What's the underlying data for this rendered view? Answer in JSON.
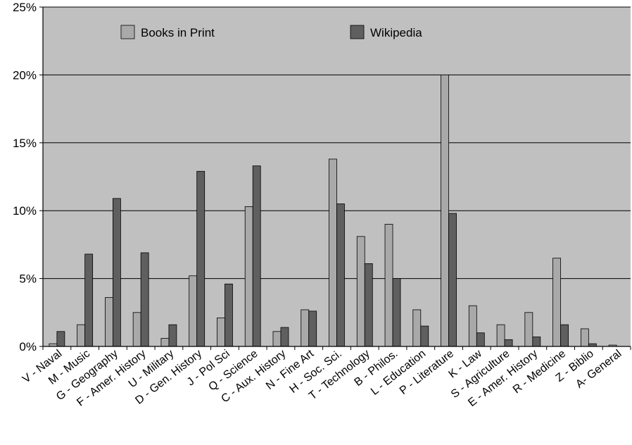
{
  "chart_data": {
    "type": "bar",
    "categories": [
      "V - Naval",
      "M - Music",
      "G - Geography",
      "F - Amer. History",
      "U - Military",
      "D - Gen. History",
      "J - Pol Sci",
      "Q - Science",
      "C - Aux. History",
      "N - Fine Art",
      "H - Soc. Sci.",
      "T - Technology",
      "B - Philos.",
      "L - Education",
      "P - Literature",
      "K - Law",
      "S - Agriculture",
      "E - Amer. History",
      "R - Medicine",
      "Z - Biblio",
      "A- General"
    ],
    "series": [
      {
        "name": "Books in Print",
        "color": "#a9a9a9",
        "values": [
          0.2,
          1.6,
          3.6,
          2.5,
          0.6,
          5.2,
          2.1,
          10.3,
          1.1,
          2.7,
          13.8,
          8.1,
          9.0,
          2.7,
          20.0,
          3.0,
          1.6,
          2.5,
          6.5,
          1.3,
          0.1
        ]
      },
      {
        "name": "Wikipedia",
        "color": "#5f5f5f",
        "values": [
          1.1,
          6.8,
          10.9,
          6.9,
          1.6,
          12.9,
          4.6,
          13.3,
          1.4,
          2.6,
          10.5,
          6.1,
          5.0,
          1.5,
          9.8,
          1.0,
          0.5,
          0.7,
          1.6,
          0.2,
          0.0
        ]
      }
    ],
    "yticks": [
      "0%",
      "5%",
      "10%",
      "15%",
      "20%",
      "25%"
    ],
    "ylim": [
      0,
      25
    ],
    "grid": true,
    "legend": "top-left",
    "plot_background": "#c0c0c0"
  }
}
